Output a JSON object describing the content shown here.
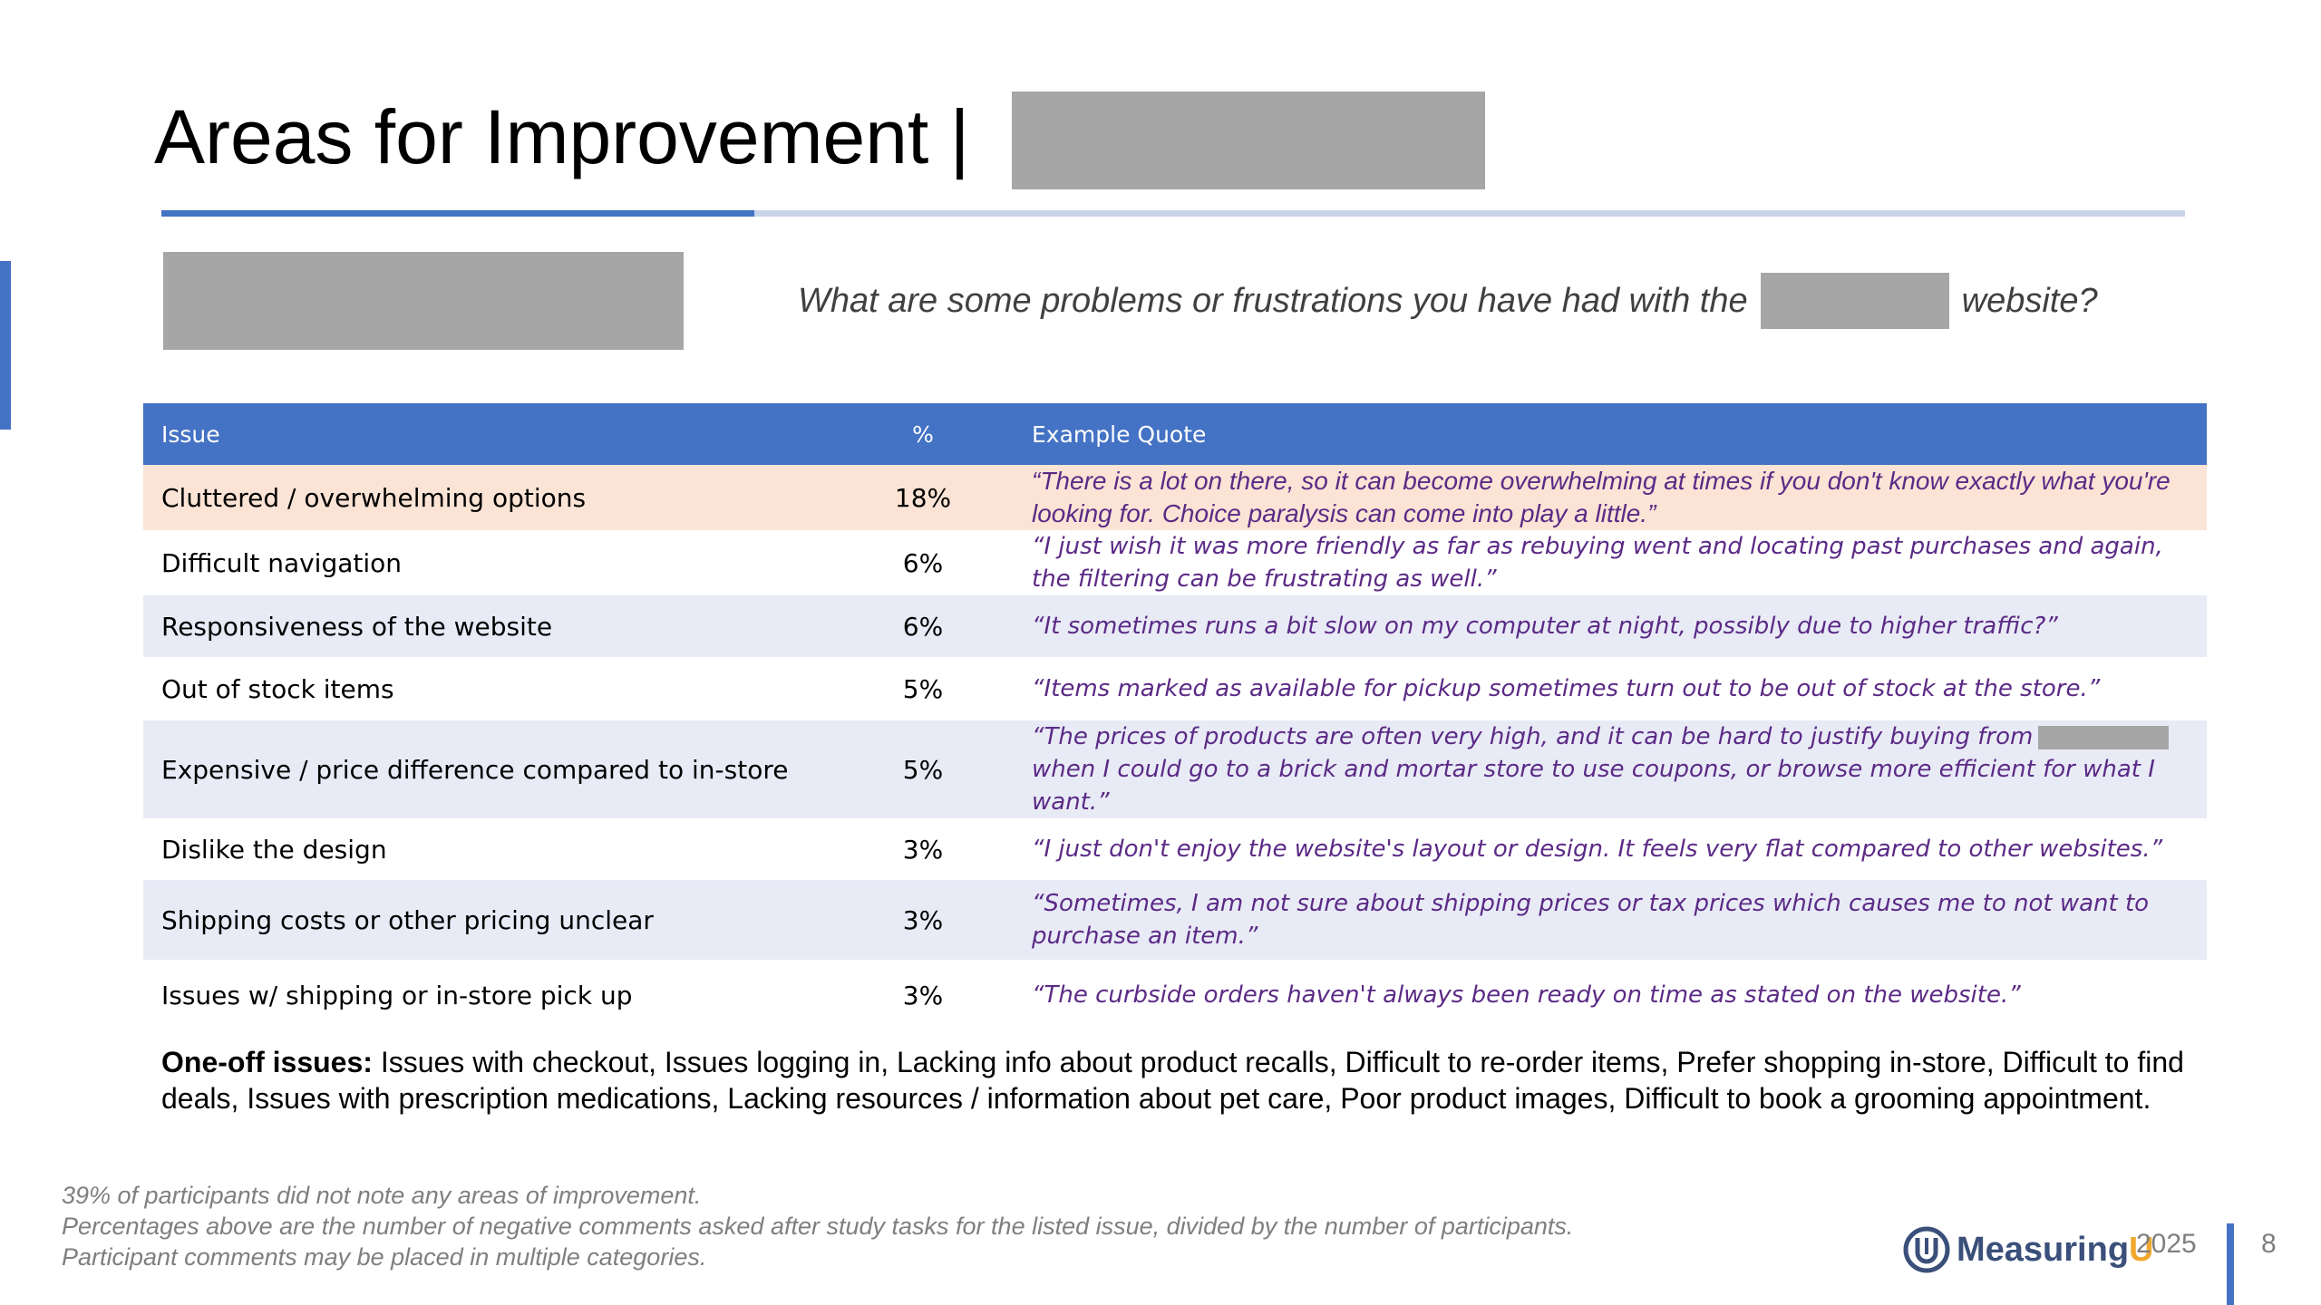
{
  "slide": {
    "title": "Areas for Improvement |",
    "question_prefix": "What are some problems or frustrations you have had with the",
    "question_suffix": "website?"
  },
  "table": {
    "headers": {
      "issue": "Issue",
      "pct": "%",
      "quote": "Example Quote"
    },
    "rows": [
      {
        "issue": "Cluttered / overwhelming options",
        "pct": "18%",
        "quote": "“There is a lot on there, so it can become overwhelming at times if you don't know exactly what you're looking for. Choice paralysis can come into play a little.”"
      },
      {
        "issue": "Difficult navigation",
        "pct": "6%",
        "quote": "“I just wish it was more friendly as far as rebuying went and locating past purchases and again, the filtering can be frustrating as well.”"
      },
      {
        "issue": "Responsiveness of the website",
        "pct": "6%",
        "quote": "“It sometimes runs a bit slow on my computer at night, possibly due to higher traffic?”"
      },
      {
        "issue": "Out of stock items",
        "pct": "5%",
        "quote": "“Items marked as available for pickup sometimes turn out to be out of stock at the store.”"
      },
      {
        "issue": "Expensive / price difference compared to in-store",
        "pct": "5%",
        "quote_before": "“The prices of products are often very high, and it can be hard to justify buying from",
        "quote_after": "when I could go to a brick and mortar store to use coupons, or browse more efficient for what I want.”"
      },
      {
        "issue": "Dislike the design",
        "pct": "3%",
        "quote": "“I just don't enjoy the website's layout or design. It feels very flat compared to other websites.”"
      },
      {
        "issue": "Shipping costs or other pricing unclear",
        "pct": "3%",
        "quote": "“Sometimes, I am not sure about shipping prices or tax prices which causes me to not want to purchase an item.”"
      },
      {
        "issue": "Issues w/ shipping or in-store pick up",
        "pct": "3%",
        "quote": "“The curbside orders haven't always been ready on time as stated on the website.”"
      }
    ]
  },
  "oneoff": {
    "label": "One-off issues:",
    "text": " Issues with checkout, Issues logging in, Lacking info about product recalls, Difficult to re-order items, Prefer shopping in-store, Difficult to find deals, Issues with prescription medications, Lacking resources / information about pet care, Poor product images, Difficult to book a grooming appointment."
  },
  "footnotes": [
    "39% of participants did not note any areas of improvement.",
    "Percentages above are the number of negative comments asked after study tasks for the listed issue, divided by the number of participants.",
    "Participant comments may be placed in multiple categories."
  ],
  "footer": {
    "logo_main": "Measuring",
    "logo_accent": "U",
    "logo_icon": "measuringu-logo-icon",
    "year": "2025",
    "page": "8"
  },
  "colors": {
    "accent_blue": "#4472C4",
    "highlight_row": "#fbe4d5",
    "band_row": "#e8ebf6",
    "quote_text": "#5b2a86",
    "logo_orange": "#f0a830"
  }
}
